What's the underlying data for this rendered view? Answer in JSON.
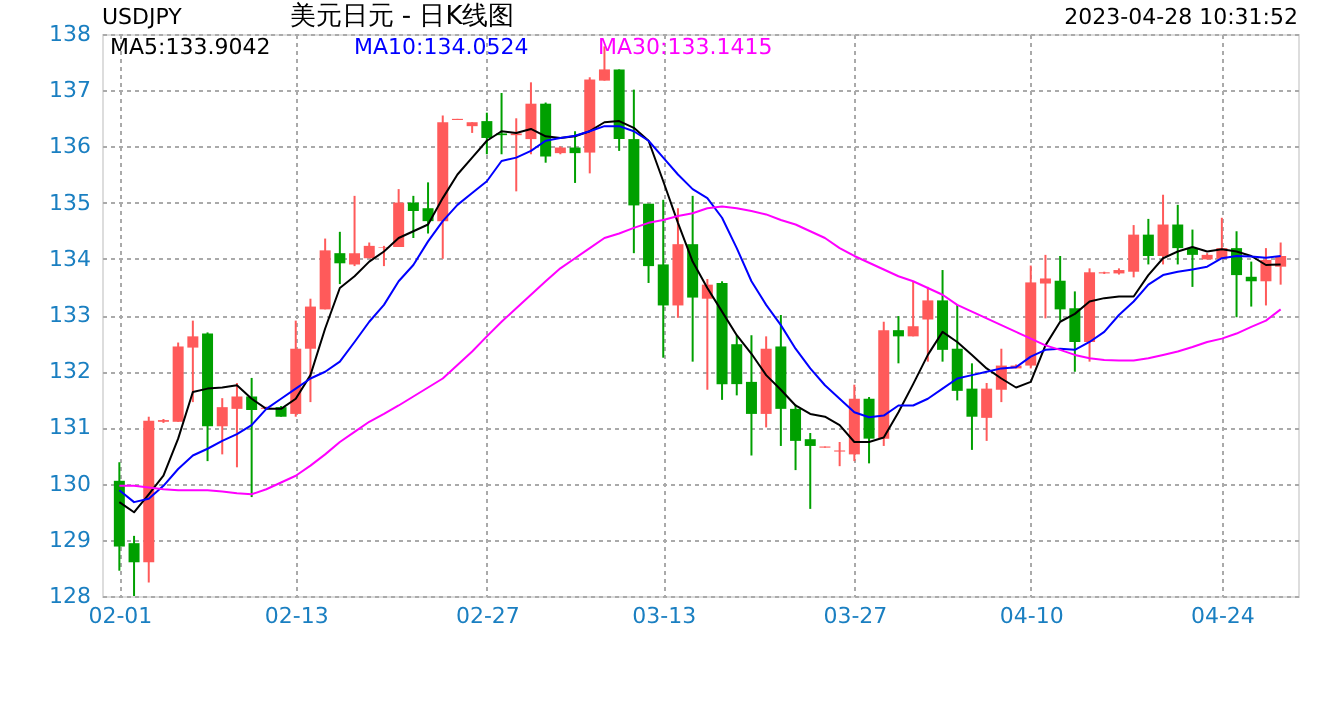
{
  "chart_data": {
    "type": "candlestick",
    "title": "美元日元 - 日K线图",
    "annotations": [
      "USDJPY",
      "2023-04-28 10:31:52"
    ],
    "categories": [
      "02-01",
      null,
      null,
      null,
      null,
      null,
      null,
      null,
      null,
      null,
      null,
      null,
      "02-13",
      null,
      null,
      null,
      null,
      null,
      null,
      null,
      null,
      null,
      null,
      null,
      null,
      "02-27",
      null,
      null,
      null,
      null,
      null,
      null,
      null,
      null,
      null,
      null,
      null,
      "03-13",
      null,
      null,
      null,
      null,
      null,
      null,
      null,
      null,
      null,
      null,
      null,
      null,
      "03-27",
      null,
      null,
      null,
      null,
      null,
      null,
      null,
      null,
      null,
      null,
      null,
      "04-10",
      null,
      null,
      null,
      null,
      null,
      null,
      null,
      null,
      null,
      null,
      null,
      null,
      "04-24",
      null,
      null,
      null,
      null
    ],
    "ohlc": [
      [
        130.05,
        130.38,
        128.45,
        128.88
      ],
      [
        128.94,
        129.07,
        128.0,
        128.6
      ],
      [
        128.6,
        131.19,
        128.24,
        131.12
      ],
      [
        131.1,
        131.15,
        131.08,
        131.13
      ],
      [
        131.1,
        132.51,
        131.1,
        132.44
      ],
      [
        132.42,
        132.9,
        131.45,
        132.62
      ],
      [
        132.67,
        132.69,
        130.4,
        131.02
      ],
      [
        131.02,
        131.52,
        130.52,
        131.36
      ],
      [
        131.33,
        131.79,
        130.29,
        131.55
      ],
      [
        131.55,
        131.88,
        129.76,
        131.31
      ],
      [
        131.33,
        131.37,
        131.31,
        131.35
      ],
      [
        131.36,
        131.38,
        131.19,
        131.19
      ],
      [
        131.24,
        132.9,
        131.19,
        132.4
      ],
      [
        132.4,
        133.29,
        131.45,
        133.15
      ],
      [
        133.1,
        134.36,
        133.1,
        134.15
      ],
      [
        134.1,
        134.48,
        133.55,
        133.92
      ],
      [
        133.9,
        135.12,
        133.87,
        134.1
      ],
      [
        134.01,
        134.29,
        134.01,
        134.23
      ],
      [
        134.2,
        134.23,
        133.87,
        134.21
      ],
      [
        134.21,
        135.24,
        134.21,
        135.0
      ],
      [
        135.0,
        135.12,
        134.37,
        134.85
      ],
      [
        134.9,
        135.36,
        134.45,
        134.67
      ],
      [
        134.67,
        136.55,
        134.0,
        136.43
      ],
      [
        136.47,
        136.49,
        136.47,
        136.49
      ],
      [
        136.36,
        136.43,
        136.24,
        136.43
      ],
      [
        136.45,
        136.6,
        135.86,
        136.15
      ],
      [
        136.23,
        136.95,
        135.86,
        136.2
      ],
      [
        136.2,
        136.5,
        135.2,
        136.23
      ],
      [
        136.13,
        137.14,
        135.86,
        136.76
      ],
      [
        136.76,
        136.78,
        135.71,
        135.82
      ],
      [
        135.88,
        136.0,
        135.86,
        135.98
      ],
      [
        135.98,
        136.27,
        135.35,
        135.88
      ],
      [
        135.89,
        137.23,
        135.52,
        137.19
      ],
      [
        137.17,
        137.78,
        137.17,
        137.37
      ],
      [
        137.37,
        137.37,
        135.92,
        136.13
      ],
      [
        136.13,
        137.01,
        134.1,
        134.95
      ],
      [
        134.98,
        134.98,
        133.57,
        133.87
      ],
      [
        133.9,
        135.05,
        132.24,
        133.17
      ],
      [
        133.17,
        134.9,
        132.95,
        134.26
      ],
      [
        134.26,
        135.12,
        132.17,
        133.31
      ],
      [
        133.29,
        133.64,
        131.67,
        133.54
      ],
      [
        133.57,
        133.6,
        131.49,
        131.77
      ],
      [
        132.48,
        132.64,
        131.57,
        131.77
      ],
      [
        131.81,
        132.64,
        130.5,
        131.24
      ],
      [
        131.24,
        132.62,
        131.0,
        132.4
      ],
      [
        132.44,
        133.0,
        130.67,
        131.33
      ],
      [
        131.33,
        131.4,
        130.24,
        130.76
      ],
      [
        130.79,
        130.9,
        129.55,
        130.67
      ],
      [
        130.64,
        130.66,
        130.64,
        130.66
      ],
      [
        130.57,
        130.74,
        130.31,
        130.59
      ],
      [
        130.52,
        131.76,
        130.4,
        131.51
      ],
      [
        131.51,
        131.54,
        130.36,
        130.8
      ],
      [
        130.8,
        132.88,
        130.67,
        132.73
      ],
      [
        132.73,
        132.98,
        132.14,
        132.62
      ],
      [
        132.62,
        133.6,
        132.62,
        132.8
      ],
      [
        132.92,
        133.5,
        132.17,
        133.26
      ],
      [
        133.26,
        133.8,
        132.17,
        132.38
      ],
      [
        132.4,
        133.18,
        131.48,
        131.65
      ],
      [
        131.69,
        132.14,
        130.6,
        131.19
      ],
      [
        131.17,
        131.79,
        130.76,
        131.69
      ],
      [
        131.67,
        132.4,
        131.45,
        132.1
      ],
      [
        132.05,
        132.12,
        132.05,
        132.1
      ],
      [
        132.1,
        133.88,
        132.05,
        133.58
      ],
      [
        133.56,
        134.07,
        132.94,
        133.65
      ],
      [
        133.61,
        134.05,
        132.9,
        133.1
      ],
      [
        133.12,
        133.42,
        131.99,
        132.52
      ],
      [
        132.52,
        133.83,
        132.17,
        133.76
      ],
      [
        133.74,
        133.77,
        133.73,
        133.76
      ],
      [
        133.74,
        133.83,
        133.72,
        133.8
      ],
      [
        133.77,
        134.6,
        133.67,
        134.43
      ],
      [
        134.43,
        134.71,
        133.9,
        134.05
      ],
      [
        134.05,
        135.14,
        133.9,
        134.61
      ],
      [
        134.61,
        134.96,
        133.9,
        134.19
      ],
      [
        134.19,
        134.52,
        133.5,
        134.07
      ],
      [
        133.99,
        134.1,
        133.99,
        134.07
      ],
      [
        134.0,
        134.73,
        134.0,
        134.19
      ],
      [
        134.19,
        134.49,
        132.96,
        133.71
      ],
      [
        133.68,
        133.95,
        133.15,
        133.6
      ],
      [
        133.6,
        134.19,
        133.17,
        133.98
      ],
      [
        133.86,
        134.29,
        133.54,
        134.05
      ]
    ],
    "colors": [
      "#00a000",
      "#00a000",
      "#ff5a5a",
      "#ff5a5a",
      "#ff5a5a",
      "#ff5a5a",
      "#00a000",
      "#ff5a5a",
      "#ff5a5a",
      "#00a000",
      "#ff5a5a",
      "#00a000",
      "#ff5a5a",
      "#ff5a5a",
      "#ff5a5a",
      "#00a000",
      "#ff5a5a",
      "#ff5a5a",
      "#ff5a5a",
      "#ff5a5a",
      "#00a000",
      "#00a000",
      "#ff5a5a",
      "#ff5a5a",
      "#ff5a5a",
      "#00a000",
      "#00a000",
      "#ff5a5a",
      "#ff5a5a",
      "#00a000",
      "#ff5a5a",
      "#00a000",
      "#ff5a5a",
      "#ff5a5a",
      "#00a000",
      "#00a000",
      "#00a000",
      "#00a000",
      "#ff5a5a",
      "#00a000",
      "#ff5a5a",
      "#00a000",
      "#00a000",
      "#00a000",
      "#ff5a5a",
      "#00a000",
      "#00a000",
      "#00a000",
      "#ff5a5a",
      "#ff5a5a",
      "#ff5a5a",
      "#00a000",
      "#ff5a5a",
      "#00a000",
      "#ff5a5a",
      "#ff5a5a",
      "#00a000",
      "#00a000",
      "#00a000",
      "#ff5a5a",
      "#ff5a5a",
      "#ff5a5a",
      "#ff5a5a",
      "#ff5a5a",
      "#00a000",
      "#00a000",
      "#ff5a5a",
      "#ff5a5a",
      "#ff5a5a",
      "#ff5a5a",
      "#00a000",
      "#ff5a5a",
      "#00a000",
      "#00a000",
      "#ff5a5a",
      "#ff5a5a",
      "#00a000",
      "#00a000",
      "#ff5a5a",
      "#ff5a5a"
    ],
    "series": [
      {
        "name": "MA5:133.9042",
        "color": "#000000",
        "type": "line",
        "values": [
          129.67,
          129.49,
          129.81,
          130.14,
          130.8,
          131.63,
          131.69,
          131.71,
          131.75,
          131.51,
          131.33,
          131.33,
          131.51,
          131.93,
          132.76,
          133.48,
          133.69,
          133.95,
          134.13,
          134.37,
          134.49,
          134.61,
          135.08,
          135.5,
          135.8,
          136.1,
          136.27,
          136.24,
          136.31,
          136.18,
          136.15,
          136.18,
          136.27,
          136.43,
          136.45,
          136.33,
          136.1,
          135.38,
          134.64,
          133.95,
          133.48,
          133.06,
          132.64,
          132.31,
          131.93,
          131.67,
          131.39,
          131.24,
          131.19,
          131.04,
          130.74,
          130.74,
          130.82,
          131.27,
          131.77,
          132.29,
          132.7,
          132.52,
          132.29,
          132.05,
          131.87,
          131.71,
          131.81,
          132.46,
          132.88,
          133.02,
          133.24,
          133.3,
          133.33,
          133.33,
          133.71,
          134.01,
          134.13,
          134.21,
          134.13,
          134.17,
          134.13,
          134.05,
          133.89,
          133.9
        ]
      },
      {
        "name": "MA10:134.0524",
        "color": "#0000ff",
        "type": "line",
        "values": [
          129.88,
          129.67,
          129.73,
          129.96,
          130.26,
          130.5,
          130.62,
          130.76,
          130.88,
          131.04,
          131.33,
          131.51,
          131.69,
          131.87,
          131.99,
          132.17,
          132.52,
          132.88,
          133.18,
          133.6,
          133.89,
          134.31,
          134.67,
          134.96,
          135.17,
          135.38,
          135.74,
          135.8,
          135.92,
          136.1,
          136.15,
          136.19,
          136.27,
          136.36,
          136.36,
          136.27,
          136.1,
          135.8,
          135.5,
          135.24,
          135.08,
          134.73,
          134.19,
          133.6,
          133.18,
          132.82,
          132.4,
          132.05,
          131.75,
          131.51,
          131.27,
          131.18,
          131.21,
          131.39,
          131.39,
          131.51,
          131.69,
          131.87,
          131.93,
          131.99,
          132.05,
          132.07,
          132.26,
          132.38,
          132.4,
          132.38,
          132.52,
          132.7,
          133.0,
          133.24,
          133.54,
          133.71,
          133.77,
          133.81,
          133.86,
          134.01,
          134.05,
          134.04,
          134.02,
          134.05
        ]
      },
      {
        "name": "MA30:133.1415",
        "color": "#ff00ff",
        "type": "line",
        "values": [
          129.96,
          129.96,
          129.93,
          129.9,
          129.88,
          129.88,
          129.88,
          129.86,
          129.83,
          129.81,
          129.9,
          130.02,
          130.14,
          130.32,
          130.52,
          130.74,
          130.92,
          131.1,
          131.24,
          131.39,
          131.55,
          131.71,
          131.87,
          132.11,
          132.35,
          132.62,
          132.88,
          133.12,
          133.36,
          133.6,
          133.83,
          134.01,
          134.19,
          134.37,
          134.45,
          134.55,
          134.64,
          134.69,
          134.76,
          134.81,
          134.9,
          134.93,
          134.9,
          134.85,
          134.79,
          134.69,
          134.61,
          134.49,
          134.37,
          134.19,
          134.05,
          133.93,
          133.81,
          133.69,
          133.6,
          133.48,
          133.36,
          133.18,
          133.06,
          132.94,
          132.82,
          132.7,
          132.58,
          132.46,
          132.38,
          132.29,
          132.23,
          132.2,
          132.19,
          132.19,
          132.23,
          132.29,
          132.35,
          132.43,
          132.52,
          132.58,
          132.67,
          132.79,
          132.9,
          133.1
        ]
      }
    ],
    "ylim": [
      128,
      138
    ],
    "yticks": [
      128,
      129,
      130,
      131,
      132,
      133,
      134,
      135,
      136,
      137,
      138
    ],
    "grid": true,
    "legend": "top"
  }
}
